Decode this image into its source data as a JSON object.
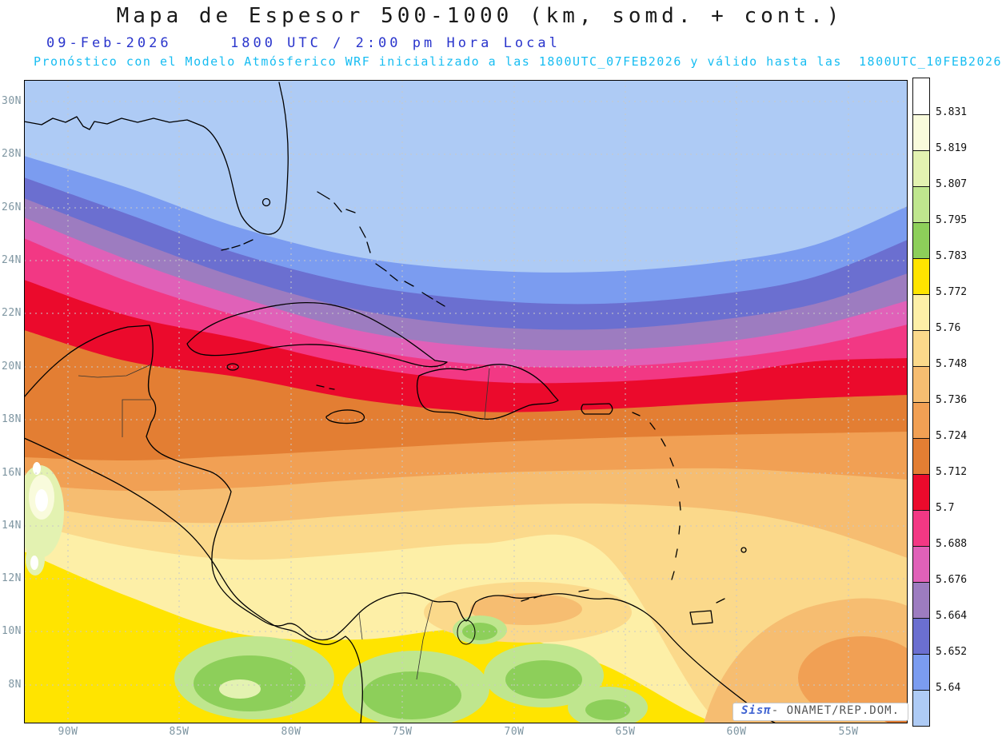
{
  "header": {
    "title": "Mapa de Espesor 500-1000 (km, somd. + cont.)",
    "date": "09-Feb-2026",
    "time_line": "1800 UTC / 2:00 pm Hora Local",
    "forecast_note": "Pronóstico con el Modelo Atmósferico WRF inicializado a las 1800UTC_07FEB2026 y válido hasta las  1800UTC_10FEB2026"
  },
  "map": {
    "lat_labels": [
      "30N",
      "28N",
      "26N",
      "24N",
      "22N",
      "20N",
      "18N",
      "16N",
      "14N",
      "12N",
      "10N",
      "8N"
    ],
    "lon_labels": [
      "90W",
      "85W",
      "80W",
      "75W",
      "70W",
      "65W",
      "60W",
      "55W"
    ]
  },
  "colorbar": {
    "labels": [
      "5.831",
      "5.819",
      "5.807",
      "5.795",
      "5.783",
      "5.772",
      "5.76",
      "5.748",
      "5.736",
      "5.724",
      "5.712",
      "5.7",
      "5.688",
      "5.676",
      "5.664",
      "5.652",
      "5.64"
    ],
    "colors": [
      "#ffffff",
      "#f9fbdc",
      "#e3f2b1",
      "#bfe68e",
      "#8dcf5a",
      "#ffe400",
      "#fdefa7",
      "#fbd98b",
      "#f6bd71",
      "#f1a054",
      "#e37e33",
      "#eb0a2c",
      "#f23884",
      "#e061b8",
      "#9d7cc0",
      "#6b6fd0",
      "#7b9cf0",
      "#aecbf5"
    ],
    "grid_color": "#c8c8c8",
    "axis_label_color": "#7f96a2"
  },
  "watermark": {
    "brand": "Sisπ",
    "org": "- ONAMET/REP.DOM."
  },
  "chart_data": {
    "type": "heatmap",
    "title": "Mapa de Espesor 500-1000 (km, somd. + cont.)",
    "variable": "Espesor (thickness) 500-1000, km, sombreado + contornos",
    "valid": "09-Feb-2026 1800 UTC / 2:00 pm Hora Local",
    "model_note": "Modelo Atmósferico WRF inicializado 1800UTC_07FEB2026, válido hasta 1800UTC_10FEB2026",
    "x_ticks": [
      "90W",
      "85W",
      "80W",
      "75W",
      "70W",
      "65W",
      "60W",
      "55W"
    ],
    "y_ticks": [
      "30N",
      "28N",
      "26N",
      "24N",
      "22N",
      "20N",
      "18N",
      "16N",
      "14N",
      "12N",
      "10N",
      "8N"
    ],
    "contour_levels_km": [
      5.64,
      5.652,
      5.664,
      5.676,
      5.688,
      5.7,
      5.712,
      5.724,
      5.736,
      5.748,
      5.76,
      5.772,
      5.783,
      5.795,
      5.807,
      5.819,
      5.831
    ],
    "legend_position": "right",
    "grid": "dashed lat/lon graticule every 2 deg lat / 5 deg lon",
    "pattern": "thickness values exceed 5.78-5.83 km (yellow/green) over northern South America and Central America, decrease northward through orange and tan bands over the Caribbean, with a tight red (5.7-5.712) and magenta/purple gradient band near 19N-24N, and values below 5.64 km (light blue) over the Gulf of Mexico, Florida and the subtropical Atlantic"
  }
}
